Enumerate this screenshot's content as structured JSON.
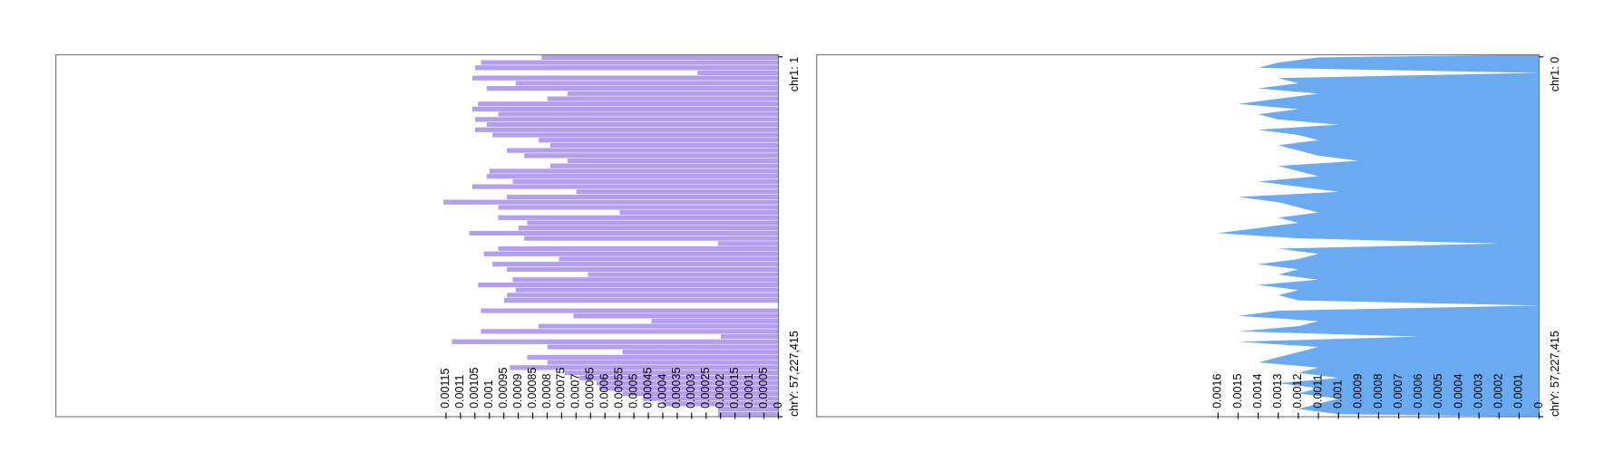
{
  "chart_data": [
    {
      "type": "bar",
      "color": "#b39ef0",
      "xlim": [
        0,
        0.0025
      ],
      "xticks": [
        0,
        5e-05,
        0.0001,
        0.00015,
        0.0002,
        0.00025,
        0.0003,
        0.00035,
        0.0004,
        0.00045,
        0.0005,
        0.00055,
        0.0006,
        0.00065,
        0.0007,
        0.00075,
        0.0008,
        0.00085,
        0.0009,
        0.00095,
        0.001,
        0.00105,
        0.0011,
        0.00115
      ],
      "categories": [
        "chr1: 1",
        null,
        null,
        null,
        null,
        null,
        null,
        null,
        null,
        null,
        null,
        null,
        null,
        null,
        null,
        null,
        null,
        null,
        null,
        null,
        null,
        null,
        null,
        null,
        null,
        null,
        null,
        null,
        null,
        null,
        null,
        null,
        null,
        null,
        null,
        null,
        null,
        null,
        null,
        null,
        null,
        null,
        null,
        null,
        null,
        null,
        null,
        null,
        null,
        null,
        null,
        null,
        null,
        null,
        null,
        null,
        null,
        null,
        null,
        null,
        null,
        null,
        null,
        null,
        null,
        null,
        null,
        null,
        null,
        "chrY: 57,227,415"
      ],
      "values": [
        0.00082,
        0.00103,
        0.00105,
        0.00028,
        0.00106,
        0.00091,
        0.00101,
        0.00073,
        0.0008,
        0.00104,
        0.00106,
        0.00097,
        0.00105,
        0.00101,
        0.00105,
        0.00099,
        0.00083,
        0.00079,
        0.00094,
        0.00088,
        0.00073,
        0.00079,
        0.001,
        0.00101,
        0.00092,
        0.00106,
        0.0007,
        0.00094,
        0.00116,
        0.00097,
        0.00055,
        0.00097,
        0.00087,
        0.0009,
        0.00107,
        0.00088,
        0.00021,
        0.00097,
        0.00102,
        0.00076,
        0.00099,
        0.00094,
        0.00066,
        0.00092,
        0.00104,
        0.00091,
        0.00094,
        0.00095,
        0,
        0.00103,
        0.00071,
        0.00044,
        0.00083,
        0.00103,
        0.0002,
        0.00113,
        0.0008,
        0.00054,
        0.00087,
        0.0008,
        0.00093,
        0.00074,
        0.00069,
        0.00063,
        0.00062,
        0.00054,
        0.00047,
        0.0004,
        0.00021,
        0.00021
      ]
    },
    {
      "type": "area",
      "color": "#6aaaf0",
      "xlim": [
        0,
        0.0036
      ],
      "xticks": [
        0,
        0.0001,
        0.0002,
        0.0003,
        0.0004,
        0.0005,
        0.0006,
        0.0007,
        0.0008,
        0.0009,
        0.001,
        0.0011,
        0.0012,
        0.0013,
        0.0014,
        0.0015,
        0.0016
      ],
      "categories": [
        "chr1: 0",
        null,
        null,
        null,
        null,
        null,
        null,
        null,
        null,
        null,
        null,
        null,
        null,
        null,
        null,
        null,
        null,
        null,
        null,
        null,
        null,
        null,
        null,
        null,
        null,
        null,
        null,
        null,
        null,
        null,
        null,
        null,
        null,
        null,
        null,
        null,
        null,
        null,
        null,
        null,
        null,
        null,
        null,
        null,
        null,
        null,
        null,
        null,
        null,
        null,
        null,
        null,
        null,
        null,
        null,
        null,
        null,
        null,
        null,
        null,
        null,
        null,
        null,
        null,
        null,
        null,
        null,
        null,
        null,
        "chrY: 57,227,415"
      ],
      "values": [
        0.0011,
        0.0013,
        0.0014,
        0,
        0.0013,
        0.0012,
        0.0014,
        0.0011,
        0.0013,
        0.0015,
        0.0012,
        0.0014,
        0.0013,
        0.001,
        0.0014,
        0.0012,
        0.0011,
        0.0013,
        0.0012,
        0.0011,
        0.0009,
        0.0013,
        0.0012,
        0.0011,
        0.0014,
        0.0012,
        0.001,
        0.0015,
        0.0013,
        0.0012,
        0.0011,
        0.0013,
        0.0012,
        0.0014,
        0.0016,
        0.0012,
        0.0002,
        0.0013,
        0.0011,
        0.0012,
        0.0014,
        0.0012,
        0.0013,
        0.0011,
        0.0014,
        0.0012,
        0.0013,
        0.0012,
        0,
        0.0013,
        0.0015,
        0.0011,
        0.0012,
        0.0015,
        0.0006,
        0.0015,
        0.0011,
        0.0012,
        0.0013,
        0.0014,
        0.0011,
        0.0012,
        0.001,
        0.0013,
        0.0011,
        0.0012,
        0.001,
        0.0011,
        0.0012,
        0.001
      ]
    }
  ]
}
